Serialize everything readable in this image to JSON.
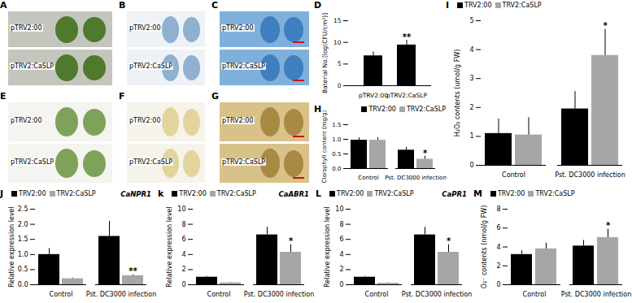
{
  "image_panels": [
    {
      "panel_label": "A",
      "labels": [
        "pTRV2:00",
        "pTRV2:CaSLP"
      ]
    },
    {
      "panel_label": "B",
      "labels": [
        "pTRV2:00",
        "pTRV2:CaSLP"
      ]
    },
    {
      "panel_label": "C",
      "labels": [
        "pTRV2:00",
        "pTRV2:CaSLP"
      ]
    },
    {
      "panel_label": "E",
      "labels": [
        "pTRV2:00",
        "pTRV2:CaSLP"
      ]
    },
    {
      "panel_label": "F",
      "labels": [
        "pTRV2:00",
        "pTRV2:CaSLP"
      ]
    },
    {
      "panel_label": "G",
      "labels": [
        "pTRV2:00",
        "pTRV2:CaSLP"
      ]
    }
  ],
  "chart_data": [
    {
      "panel_label": "D",
      "type": "bar",
      "y_label": "Baterial No.[log(CFU/cm²)]",
      "categories": [
        "pTRV2:00",
        "pTRV2:CaSLP"
      ],
      "values": [
        6.9,
        9.4
      ],
      "errors": [
        0.9,
        1.1
      ],
      "color": "#000000",
      "ylim": [
        0,
        15
      ],
      "yticks": [
        0,
        5,
        10,
        15
      ],
      "annotations": [
        {
          "category": "pTRV2:CaSLP",
          "text": "**"
        }
      ]
    },
    {
      "panel_label": "I",
      "type": "bar",
      "y_label": "H₂O₂ contents (umol/g FW)",
      "legend": "top-left",
      "categories": [
        "Control",
        "Pst. DC3000 infection"
      ],
      "series": [
        {
          "name": "TRV2:00",
          "color": "#000000",
          "values": [
            1.1,
            1.95
          ],
          "errors": [
            0.5,
            0.6
          ]
        },
        {
          "name": "TRV2:CaSLP",
          "color": "#a6a6a6",
          "values": [
            1.05,
            3.8
          ],
          "errors": [
            0.6,
            0.9
          ]
        }
      ],
      "ylim": [
        0,
        5
      ],
      "yticks": [
        0,
        1,
        2,
        3,
        4,
        5
      ],
      "annotations": [
        {
          "category": "Pst. DC3000 infection",
          "series": "TRV2:CaSLP",
          "text": "*"
        }
      ]
    },
    {
      "panel_label": "H",
      "type": "bar",
      "y_label": "Clorophyll content (mg/g)",
      "legend": "top-right",
      "categories": [
        "Control",
        "Pst. DC3000 infection"
      ],
      "series": [
        {
          "name": "TRV2:00",
          "color": "#000000",
          "values": [
            0.97,
            0.63
          ],
          "errors": [
            0.08,
            0.09
          ]
        },
        {
          "name": "TRV2:CaSLP",
          "color": "#a6a6a6",
          "values": [
            0.97,
            0.32
          ],
          "errors": [
            0.09,
            0.1
          ]
        }
      ],
      "ylim": [
        0,
        1.5
      ],
      "yticks": [
        {
          "value": 0,
          "label": "0.0"
        },
        0.5,
        {
          "value": 1,
          "label": "1.0"
        },
        1.5
      ],
      "annotations": [
        {
          "category": "Pst. DC3000 infection",
          "series": "TRV2:CaSLP",
          "text": "*"
        }
      ]
    },
    {
      "panel_label": "J",
      "type": "bar",
      "title": "CaNPR1",
      "y_label": "Relative expression level",
      "legend": "top-left",
      "categories": [
        "Control",
        "Pst. DC3000 infection"
      ],
      "series": [
        {
          "name": "TRV2:00",
          "color": "#000000",
          "values": [
            1.0,
            1.6
          ],
          "errors": [
            0.2,
            0.5
          ]
        },
        {
          "name": "TRV2:CaSLP",
          "color": "#a6a6a6",
          "values": [
            0.2,
            0.3
          ],
          "errors": [
            0.02,
            0.03
          ]
        }
      ],
      "ylim": [
        0,
        2.5
      ],
      "yticks": [
        {
          "value": 0,
          "label": "0.0"
        },
        0.5,
        {
          "value": 1,
          "label": "1.0"
        },
        1.5,
        {
          "value": 2,
          "label": "2.0"
        },
        2.5
      ],
      "annotations": [
        {
          "category": "Pst. DC3000 infection",
          "series": "TRV2:CaSLP",
          "text": "**"
        }
      ]
    },
    {
      "panel_label": "k",
      "type": "bar",
      "title": "CaABR1",
      "y_label": "Relative expression level",
      "legend": "top-left",
      "categories": [
        "Control",
        "Pst. DC3000 infection"
      ],
      "series": [
        {
          "name": "TRV2:00",
          "color": "#000000",
          "values": [
            1.0,
            6.6
          ],
          "errors": [
            0.1,
            1.0
          ]
        },
        {
          "name": "TRV2:CaSLP",
          "color": "#a6a6a6",
          "values": [
            0.25,
            4.3
          ],
          "errors": [
            0.05,
            1.0
          ]
        }
      ],
      "ylim": [
        0,
        10
      ],
      "yticks": [
        0,
        2,
        4,
        6,
        8,
        10
      ],
      "annotations": [
        {
          "category": "Pst. DC3000 infection",
          "series": "TRV2:CaSLP",
          "text": "*"
        }
      ]
    },
    {
      "panel_label": "L",
      "type": "bar",
      "title": "CaPR1",
      "y_label": "Relative expression level",
      "legend": "top-left",
      "categories": [
        "Control",
        "Pst. DC3000 infection"
      ],
      "series": [
        {
          "name": "TRV2:00",
          "color": "#000000",
          "values": [
            1.0,
            6.6
          ],
          "errors": [
            0.1,
            1.0
          ]
        },
        {
          "name": "TRV2:CaSLP",
          "color": "#a6a6a6",
          "values": [
            0.2,
            4.3
          ],
          "errors": [
            0.05,
            1.0
          ]
        }
      ],
      "ylim": [
        0,
        10
      ],
      "yticks": [
        0,
        2,
        4,
        6,
        8,
        10
      ],
      "annotations": [
        {
          "category": "Pst. DC3000 infection",
          "series": "TRV2:CaSLP",
          "text": "*"
        }
      ]
    },
    {
      "panel_label": "M",
      "type": "bar",
      "y_label": "O₂⁻ contents (nmol/g FW)",
      "legend": "top-left",
      "categories": [
        "Control",
        "Pst. DC3000 infection"
      ],
      "series": [
        {
          "name": "TRV2:00",
          "color": "#000000",
          "values": [
            3.2,
            4.1
          ],
          "errors": [
            0.4,
            0.6
          ]
        },
        {
          "name": "TRV2:CaSLP",
          "color": "#a6a6a6",
          "values": [
            3.8,
            5.0
          ],
          "errors": [
            0.6,
            0.9
          ]
        }
      ],
      "ylim": [
        0,
        8
      ],
      "yticks": [
        0,
        2,
        4,
        6,
        8
      ],
      "annotations": [
        {
          "category": "Pst. DC3000 infection",
          "series": "TRV2:CaSLP",
          "text": "*"
        }
      ]
    }
  ]
}
